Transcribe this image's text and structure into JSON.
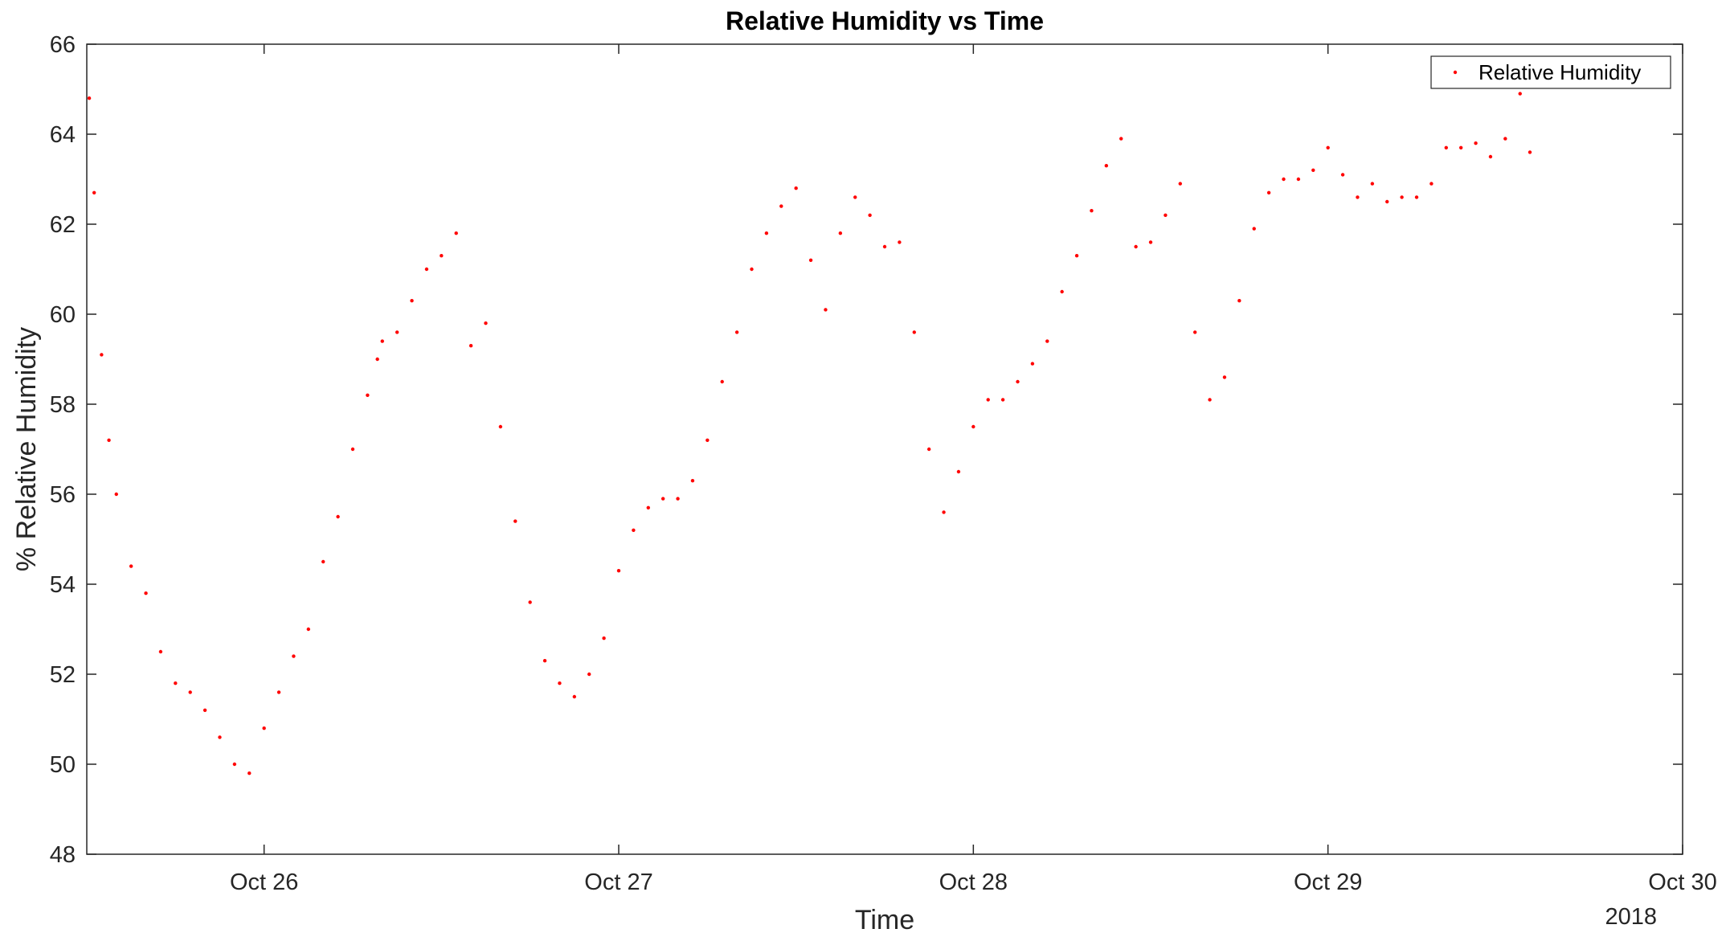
{
  "chart_data": {
    "type": "scatter",
    "title": "Relative Humidity vs Time",
    "xlabel": "Time",
    "ylabel": "% Relative Humidity",
    "x_secondary_label": "2018",
    "xlim": [
      "2018-10-25T12:00",
      "2018-10-30T00:00"
    ],
    "ylim": [
      48,
      66
    ],
    "x_ticks": [
      {
        "value": "2018-10-26T00:00",
        "label": "Oct 26"
      },
      {
        "value": "2018-10-27T00:00",
        "label": "Oct 27"
      },
      {
        "value": "2018-10-28T00:00",
        "label": "Oct 28"
      },
      {
        "value": "2018-10-29T00:00",
        "label": "Oct 29"
      },
      {
        "value": "2018-10-30T00:00",
        "label": "Oct 30"
      }
    ],
    "y_ticks": [
      48,
      50,
      52,
      54,
      56,
      58,
      60,
      62,
      64,
      66
    ],
    "grid": false,
    "legend_position": "top-right",
    "series": [
      {
        "name": "Relative Humidity",
        "color": "#ff0000",
        "marker": "point",
        "x": [
          "2018-10-25T12:10",
          "2018-10-25T12:30",
          "2018-10-25T13:00",
          "2018-10-25T13:30",
          "2018-10-25T14:00",
          "2018-10-25T15:00",
          "2018-10-25T16:00",
          "2018-10-25T17:00",
          "2018-10-25T18:00",
          "2018-10-25T19:00",
          "2018-10-25T20:00",
          "2018-10-25T21:00",
          "2018-10-25T22:00",
          "2018-10-25T23:00",
          "2018-10-26T00:00",
          "2018-10-26T01:00",
          "2018-10-26T02:00",
          "2018-10-26T03:00",
          "2018-10-26T04:00",
          "2018-10-26T05:00",
          "2018-10-26T06:00",
          "2018-10-26T07:00",
          "2018-10-26T07:40",
          "2018-10-26T08:00",
          "2018-10-26T09:00",
          "2018-10-26T10:00",
          "2018-10-26T11:00",
          "2018-10-26T12:00",
          "2018-10-26T13:00",
          "2018-10-26T14:00",
          "2018-10-26T15:00",
          "2018-10-26T16:00",
          "2018-10-26T17:00",
          "2018-10-26T18:00",
          "2018-10-26T19:00",
          "2018-10-26T20:00",
          "2018-10-26T21:00",
          "2018-10-26T22:00",
          "2018-10-26T23:00",
          "2018-10-27T00:00",
          "2018-10-27T01:00",
          "2018-10-27T02:00",
          "2018-10-27T03:00",
          "2018-10-27T04:00",
          "2018-10-27T05:00",
          "2018-10-27T06:00",
          "2018-10-27T07:00",
          "2018-10-27T08:00",
          "2018-10-27T09:00",
          "2018-10-27T10:00",
          "2018-10-27T11:00",
          "2018-10-27T12:00",
          "2018-10-27T13:00",
          "2018-10-27T14:00",
          "2018-10-27T15:00",
          "2018-10-27T16:00",
          "2018-10-27T17:00",
          "2018-10-27T18:00",
          "2018-10-27T19:00",
          "2018-10-27T20:00",
          "2018-10-27T21:00",
          "2018-10-27T22:00",
          "2018-10-27T23:00",
          "2018-10-28T00:00",
          "2018-10-28T01:00",
          "2018-10-28T02:00",
          "2018-10-28T03:00",
          "2018-10-28T04:00",
          "2018-10-28T05:00",
          "2018-10-28T06:00",
          "2018-10-28T07:00",
          "2018-10-28T08:00",
          "2018-10-28T09:00",
          "2018-10-28T10:00",
          "2018-10-28T11:00",
          "2018-10-28T12:00",
          "2018-10-28T13:00",
          "2018-10-28T14:00",
          "2018-10-28T15:00",
          "2018-10-28T16:00",
          "2018-10-28T17:00",
          "2018-10-28T18:00",
          "2018-10-28T19:00",
          "2018-10-28T20:00",
          "2018-10-28T21:00",
          "2018-10-28T22:00",
          "2018-10-28T23:00",
          "2018-10-29T00:00",
          "2018-10-29T01:00",
          "2018-10-29T02:00",
          "2018-10-29T03:00",
          "2018-10-29T04:00",
          "2018-10-29T05:00",
          "2018-10-29T06:00",
          "2018-10-29T07:00",
          "2018-10-29T08:00",
          "2018-10-29T09:00",
          "2018-10-29T10:00",
          "2018-10-29T11:00",
          "2018-10-29T12:00",
          "2018-10-29T13:00",
          "2018-10-29T13:40"
        ],
        "y": [
          64.8,
          62.7,
          59.1,
          57.2,
          56.0,
          54.4,
          53.8,
          52.5,
          51.8,
          51.6,
          51.2,
          50.6,
          50.0,
          49.8,
          50.8,
          51.6,
          52.4,
          53.0,
          54.5,
          55.5,
          57.0,
          58.2,
          59.0,
          59.4,
          59.6,
          60.3,
          61.0,
          61.3,
          61.8,
          59.3,
          59.8,
          57.5,
          55.4,
          53.6,
          52.3,
          51.8,
          51.5,
          52.0,
          52.8,
          54.3,
          55.2,
          55.7,
          55.9,
          55.9,
          56.3,
          57.2,
          58.5,
          59.6,
          61.0,
          61.8,
          62.4,
          62.8,
          61.2,
          60.1,
          61.8,
          62.6,
          62.2,
          61.5,
          61.6,
          59.6,
          57.0,
          55.6,
          56.5,
          57.5,
          58.1,
          58.1,
          58.5,
          58.9,
          59.4,
          60.5,
          61.3,
          62.3,
          63.3,
          63.9,
          61.5,
          61.6,
          62.2,
          62.9,
          59.6,
          58.1,
          58.6,
          60.3,
          61.9,
          62.7,
          63.0,
          63.0,
          63.2,
          63.7,
          63.1,
          62.6,
          62.9,
          62.5,
          62.6,
          62.6,
          62.9,
          63.7,
          63.7,
          63.8,
          63.5,
          63.9,
          64.9,
          63.6
        ]
      }
    ]
  }
}
